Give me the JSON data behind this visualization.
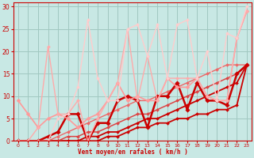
{
  "background_color": "#c8e8e4",
  "grid_color": "#a0c8c0",
  "xlabel": "Vent moyen/en rafales ( km/h )",
  "ylim": [
    0,
    31
  ],
  "xlim": [
    -0.5,
    23.5
  ],
  "tick_color": "#cc0000",
  "lines": [
    {
      "x": [
        0,
        1,
        2,
        3,
        4,
        5,
        6,
        7,
        8,
        9,
        10,
        11,
        12,
        13,
        14,
        15,
        16,
        17,
        18,
        19,
        20,
        21,
        22,
        23
      ],
      "y": [
        0,
        0,
        0,
        0,
        0,
        0,
        0,
        0,
        0,
        1,
        1,
        2,
        3,
        3,
        4,
        4,
        5,
        5,
        6,
        6,
        7,
        7,
        8,
        17
      ],
      "color": "#cc0000",
      "lw": 1.3,
      "marker": "D",
      "ms": 2.0
    },
    {
      "x": [
        0,
        1,
        2,
        3,
        4,
        5,
        6,
        7,
        8,
        9,
        10,
        11,
        12,
        13,
        14,
        15,
        16,
        17,
        18,
        19,
        20,
        21,
        22,
        23
      ],
      "y": [
        0,
        0,
        0,
        0,
        0,
        0,
        0,
        1,
        1,
        2,
        2,
        3,
        4,
        5,
        5,
        6,
        7,
        8,
        9,
        10,
        11,
        12,
        13,
        17
      ],
      "color": "#cc0000",
      "lw": 1.3,
      "marker": "D",
      "ms": 2.0
    },
    {
      "x": [
        0,
        1,
        2,
        3,
        4,
        5,
        6,
        7,
        8,
        9,
        10,
        11,
        12,
        13,
        14,
        15,
        16,
        17,
        18,
        19,
        20,
        21,
        22,
        23
      ],
      "y": [
        0,
        0,
        0,
        0,
        0,
        1,
        1,
        2,
        2,
        3,
        4,
        5,
        6,
        6,
        7,
        8,
        9,
        10,
        11,
        12,
        13,
        14,
        15,
        17
      ],
      "color": "#dd4444",
      "lw": 1.1,
      "marker": "D",
      "ms": 2.0
    },
    {
      "x": [
        0,
        1,
        2,
        3,
        4,
        5,
        6,
        7,
        8,
        9,
        10,
        11,
        12,
        13,
        14,
        15,
        16,
        17,
        18,
        19,
        20,
        21,
        22,
        23
      ],
      "y": [
        0,
        0,
        0,
        0,
        1,
        2,
        3,
        4,
        5,
        6,
        7,
        8,
        9,
        9,
        10,
        11,
        12,
        13,
        14,
        15,
        16,
        17,
        17,
        17
      ],
      "color": "#ee6666",
      "lw": 1.0,
      "marker": "D",
      "ms": 2.0
    },
    {
      "x": [
        0,
        1,
        2,
        3,
        4,
        5,
        6,
        7,
        8,
        9,
        10,
        11,
        12,
        13,
        14,
        15,
        16,
        17,
        18,
        19,
        20,
        21,
        22,
        23
      ],
      "y": [
        0,
        0,
        0,
        1,
        2,
        6,
        6,
        0,
        4,
        4,
        9,
        10,
        9,
        3,
        10,
        10,
        13,
        7,
        13,
        9,
        9,
        8,
        15,
        17
      ],
      "color": "#cc0000",
      "lw": 1.8,
      "marker": "D",
      "ms": 2.8
    },
    {
      "x": [
        0,
        1,
        2,
        3,
        4,
        5,
        6,
        7,
        8,
        9,
        10,
        11,
        12,
        13,
        14,
        15,
        16,
        17,
        18,
        19,
        20,
        21,
        22,
        23
      ],
      "y": [
        9,
        6,
        3,
        5,
        6,
        5,
        3,
        5,
        6,
        9,
        13,
        9,
        10,
        9,
        9,
        14,
        12,
        12,
        14,
        10,
        9,
        9,
        23,
        29
      ],
      "color": "#ff9999",
      "lw": 1.2,
      "marker": "D",
      "ms": 2.5
    },
    {
      "x": [
        0,
        1,
        2,
        3,
        4,
        5,
        6,
        7,
        8,
        9,
        10,
        11,
        12,
        13,
        14,
        15,
        16,
        17,
        18,
        19,
        20,
        21,
        22,
        23
      ],
      "y": [
        0,
        0,
        3,
        21,
        6,
        6,
        9,
        0,
        5,
        9,
        13,
        25,
        9,
        19,
        9,
        14,
        14,
        14,
        14,
        10,
        9,
        9,
        23,
        29
      ],
      "color": "#ffaaaa",
      "lw": 1.0,
      "marker": "D",
      "ms": 2.0
    },
    {
      "x": [
        0,
        1,
        2,
        3,
        4,
        5,
        6,
        7,
        8,
        9,
        10,
        11,
        12,
        13,
        14,
        15,
        16,
        17,
        18,
        19,
        20,
        21,
        22,
        23
      ],
      "y": [
        0,
        0,
        0,
        0,
        5,
        6,
        12,
        27,
        14,
        9,
        9,
        25,
        26,
        19,
        26,
        14,
        26,
        27,
        14,
        20,
        9,
        24,
        23,
        30
      ],
      "color": "#ffcccc",
      "lw": 1.0,
      "marker": "D",
      "ms": 2.0
    }
  ]
}
